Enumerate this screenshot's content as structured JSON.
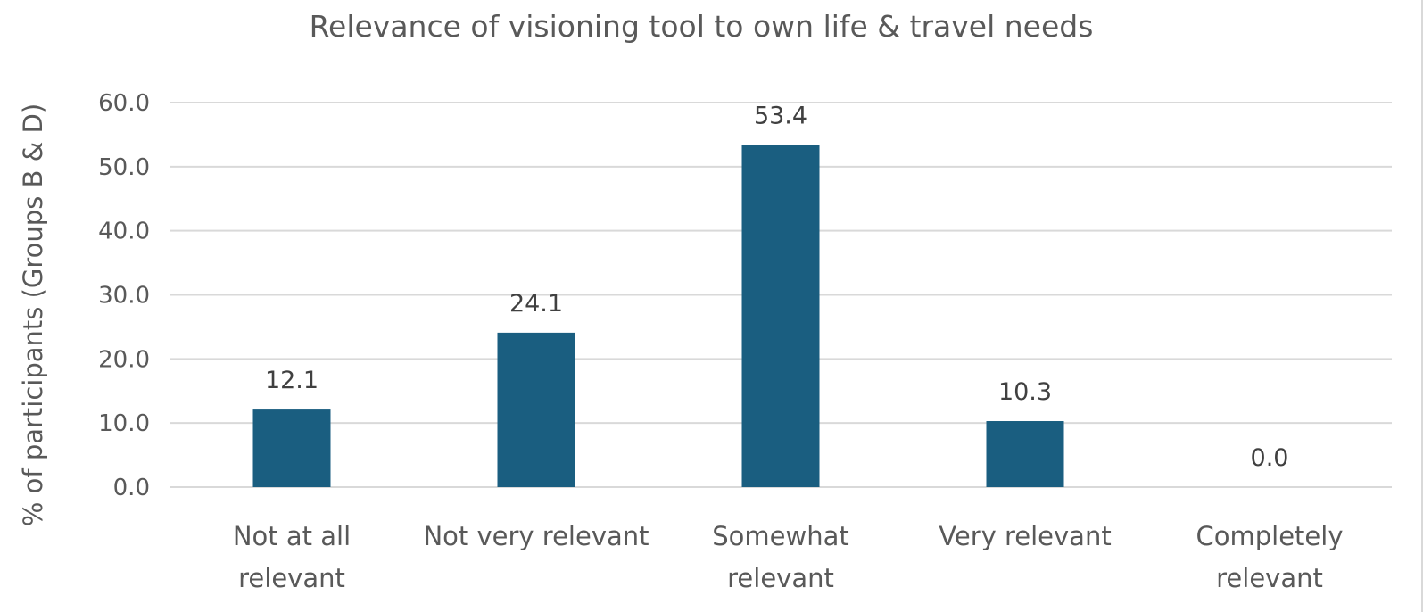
{
  "chart_data": {
    "type": "bar",
    "title": "Relevance of visioning tool to own life & travel needs",
    "xlabel": "",
    "ylabel": "% of participants (Groups B & D)",
    "categories": [
      [
        "Not at all",
        "relevant"
      ],
      [
        "Not very relevant"
      ],
      [
        "Somewhat",
        "relevant"
      ],
      [
        "Very relevant"
      ],
      [
        "Completely",
        "relevant"
      ]
    ],
    "values": [
      12.1,
      24.1,
      53.4,
      10.3,
      0.0
    ],
    "data_labels": [
      "12.1",
      "24.1",
      "53.4",
      "10.3",
      "0.0"
    ],
    "ylim": [
      0,
      60
    ],
    "yticks": [
      0,
      10,
      20,
      30,
      40,
      50,
      60
    ],
    "ytick_labels": [
      "0.0",
      "10.0",
      "20.0",
      "30.0",
      "40.0",
      "50.0",
      "60.0"
    ],
    "grid": true,
    "legend": "none",
    "bar_color": "#1a5e80",
    "grid_color": "#d9d9d9"
  }
}
